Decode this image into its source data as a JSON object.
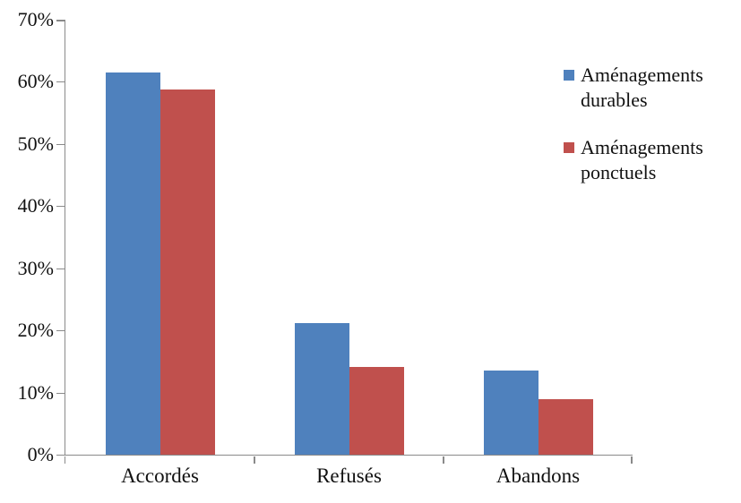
{
  "chart_data": {
    "type": "bar",
    "categories": [
      "Accordés",
      "Refusés",
      "Abandons"
    ],
    "series": [
      {
        "name": "Aménagements durables",
        "color": "#4F81BD",
        "values": [
          61.5,
          21.2,
          13.6
        ]
      },
      {
        "name": "Aménagements ponctuels",
        "color": "#C0504D",
        "values": [
          58.8,
          14.1,
          8.9
        ]
      }
    ],
    "ylim": [
      0,
      70
    ],
    "y_tick_step": 10,
    "y_tick_labels": [
      "0%",
      "10%",
      "20%",
      "30%",
      "40%",
      "50%",
      "60%",
      "70%"
    ],
    "grid": false,
    "legend_position": "right",
    "title": ""
  },
  "colors": {
    "axis": "#8A8A8A",
    "text": "#111111",
    "background": "#FFFFFF",
    "series_blue": "#4F81BD",
    "series_red": "#C0504D"
  }
}
